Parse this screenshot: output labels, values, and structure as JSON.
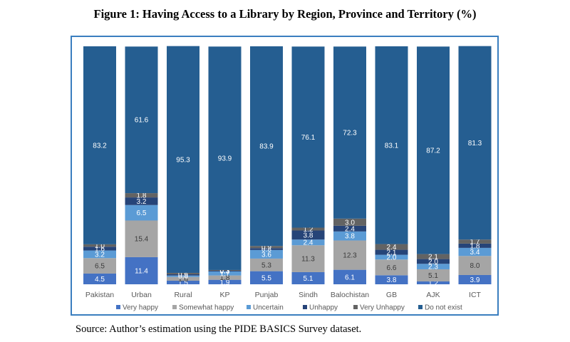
{
  "figure": {
    "title": "Figure 1: Having Access to a Library by Region, Province and Territory (%)",
    "source": "Source: Author’s estimation using the PIDE BASICS Survey dataset."
  },
  "chart_data": {
    "type": "bar",
    "stacked": true,
    "percent": true,
    "title": "",
    "xlabel": "",
    "ylabel": "",
    "ylim": [
      0,
      100
    ],
    "grid": false,
    "legend_position": "bottom",
    "categories": [
      "Pakistan",
      "Urban",
      "Rural",
      "KP",
      "Punjab",
      "Sindh",
      "Balochistan",
      "GB",
      "AJK",
      "ICT"
    ],
    "series": [
      {
        "name": "Very happy",
        "color": "#4472c4",
        "values": [
          4.5,
          11.4,
          1.5,
          1.9,
          5.5,
          5.1,
          6.1,
          3.8,
          1.2,
          3.9
        ]
      },
      {
        "name": "Somewhat happy",
        "color": "#a5a5a5",
        "values": [
          6.5,
          15.4,
          1.6,
          1.8,
          5.3,
          11.3,
          12.3,
          6.6,
          5.1,
          8.0
        ]
      },
      {
        "name": "Uncertain",
        "color": "#5b9bd5",
        "values": [
          3.2,
          6.5,
          0.6,
          1.7,
          3.6,
          2.4,
          3.8,
          2.0,
          2.3,
          3.4
        ]
      },
      {
        "name": "Unhappy",
        "color": "#264478",
        "values": [
          1.6,
          3.2,
          0.5,
          0.3,
          0.8,
          3.8,
          2.4,
          2.1,
          2.0,
          1.8
        ]
      },
      {
        "name": "Very Unhappy",
        "color": "#636363",
        "values": [
          1.0,
          1.8,
          0.6,
          0.3,
          0.9,
          1.2,
          3.0,
          2.4,
          2.1,
          1.7
        ]
      },
      {
        "name": "Do not exist",
        "color": "#255e91",
        "values": [
          83.2,
          61.6,
          95.3,
          93.9,
          83.9,
          76.1,
          72.3,
          83.1,
          87.2,
          81.3
        ]
      }
    ]
  }
}
